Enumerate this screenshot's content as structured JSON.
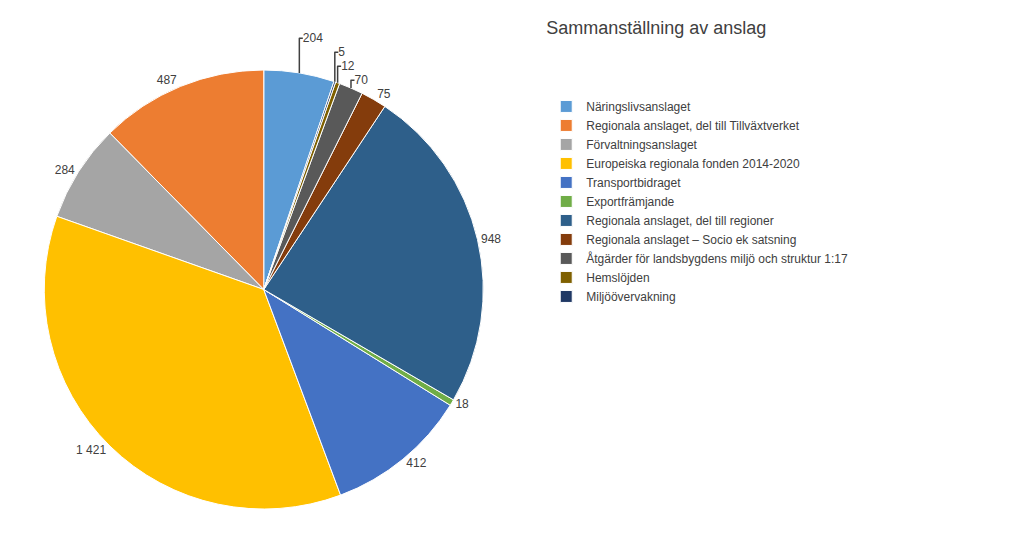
{
  "chart_data": {
    "type": "pie",
    "title": "Sammanställning av anslag",
    "categories": [
      "Näringslivsanslaget",
      "Regionala anslaget, del till Tillväxtverket",
      "Förvaltningsanslaget",
      "Europeiska regionala fonden 2014-2020",
      "Transportbidraget",
      "Exportfrämjande",
      "Regionala anslaget, del till regioner",
      "Regionala anslaget – Socio ek satsning",
      "Åtgärder för landsbygdens miljö och struktur 1:17",
      "Hemslöjden",
      "Miljöövervakning"
    ],
    "values": [
      204,
      487,
      284,
      1421,
      412,
      18,
      948,
      75,
      70,
      12,
      5
    ],
    "value_labels": [
      "204",
      "487",
      "284",
      "1 421",
      "412",
      "18",
      "948",
      "75",
      "70",
      "12",
      "5"
    ],
    "colors": [
      "#5B9BD5",
      "#ED7D31",
      "#A5A5A5",
      "#FFC000",
      "#4472C4",
      "#70AD47",
      "#2E5F8A",
      "#843C0C",
      "#595959",
      "#7F6000",
      "#1F3864"
    ],
    "data_labels": true,
    "legend": "right"
  }
}
